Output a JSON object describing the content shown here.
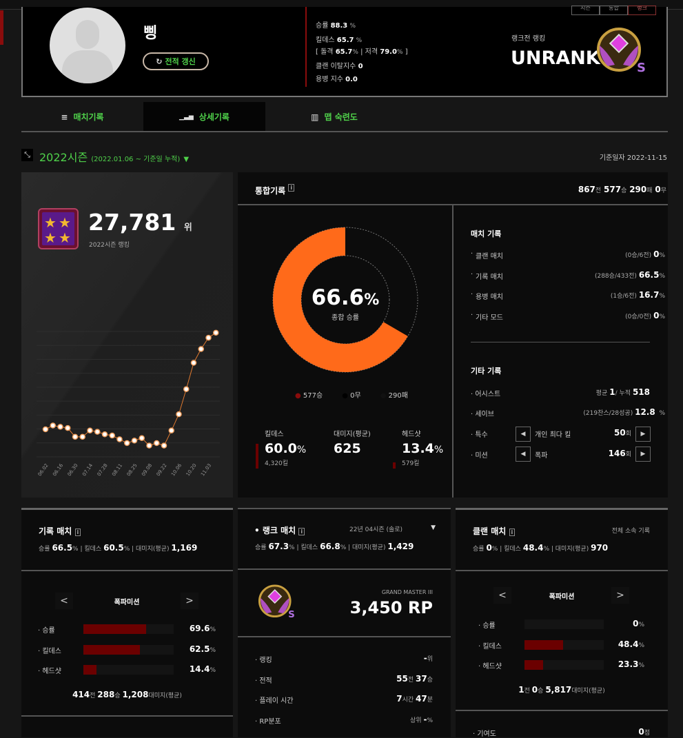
{
  "profile": {
    "name": "삥",
    "refresh_label": "전적 갱신",
    "stats": {
      "win_label": "승률",
      "win": "88.3",
      "kd_label": "킬데스",
      "kd": "65.7",
      "assault_label": "돌격",
      "assault": "65.7",
      "sniper_label": "저격",
      "sniper": "79.0",
      "clan_leave_label": "클랜 이탈지수",
      "clan_leave": "0",
      "merc_label": "용병 지수",
      "merc": "0.0"
    },
    "rank_label": "랭크전 랭킹",
    "rank_value": "UNRANK",
    "mode_buttons": [
      "시즌",
      "통합",
      "랭크"
    ]
  },
  "tabs": [
    {
      "label": "매치기록"
    },
    {
      "label": "상세기록"
    },
    {
      "label": "맵 숙련도"
    }
  ],
  "season": {
    "title": "2022시즌",
    "range": "(2022.01.06 ~ 기준일 누적)",
    "base_date": "기준일자 2022-11-15"
  },
  "ranking": {
    "value": "27,781",
    "unit": "위",
    "caption": "2022시즌 랭킹"
  },
  "chart_data": {
    "type": "line",
    "title": "",
    "xlabel": "",
    "ylabel": "",
    "grid": true,
    "ylim": [
      0,
      100
    ],
    "x_tick_labels": [
      "06.02",
      "06.16",
      "06.30",
      "07.14",
      "07.28",
      "08.11",
      "08.25",
      "09.08",
      "09.22",
      "10.06",
      "10.20",
      "11.03"
    ],
    "values": [
      22,
      25,
      24,
      23,
      16,
      16,
      21,
      20,
      18,
      17,
      14,
      11,
      13,
      15,
      9,
      11,
      9,
      21,
      34,
      54,
      75,
      86,
      95,
      99
    ]
  },
  "overall": {
    "title": "통합기록",
    "games": "867",
    "games_u": "전",
    "wins": "577",
    "wins_u": "승",
    "losses": "290",
    "losses_u": "패",
    "draws": "0",
    "draws_u": "무",
    "win_rate": "66.6",
    "win_rate_fraction": 0.666,
    "win_rate_label": "종합 승률",
    "legend": [
      "577승",
      "0무",
      "290패"
    ],
    "kd_label": "킬데스",
    "kd": "60.0",
    "kills": "4,320킬",
    "dmg_label": "대미지(평균)",
    "dmg": "625",
    "hs_label": "헤드샷",
    "hs": "13.4",
    "hs_kills": "579킬"
  },
  "match_records": {
    "title": "매치 기록",
    "items": [
      {
        "label": "클랜 매치",
        "detail": "(0승/6전)",
        "value": "0"
      },
      {
        "label": "기록 매치",
        "detail": "(288승/433전)",
        "value": "66.5"
      },
      {
        "label": "용병 매치",
        "detail": "(1승/6전)",
        "value": "16.7"
      },
      {
        "label": "기타 모드",
        "detail": "(0승/0전)",
        "value": "0"
      }
    ]
  },
  "other_records": {
    "title": "기타 기록",
    "assist_label": "어시스트",
    "assist_avg_l": "평균",
    "assist_avg": "1",
    "assist_total_l": "/ 누적",
    "assist_total": "518",
    "save_label": "세이브",
    "save_detail": "(219찬스/28성공)",
    "save": "12.8",
    "special_label": "특수",
    "special_item": "개인 최다 킬",
    "special_value": "50",
    "special_unit": "회",
    "mission_label": "미션",
    "mission_item": "폭파",
    "mission_value": "146",
    "mission_unit": "회"
  },
  "record_match": {
    "title": "기록 매치",
    "win": "66.5",
    "kd": "60.5",
    "dmg": "1,169",
    "mode": "폭파미션",
    "rows": [
      {
        "label": "승률",
        "value": "69.6",
        "pct": 69.6
      },
      {
        "label": "킬데스",
        "value": "62.5",
        "pct": 62.5
      },
      {
        "label": "헤드샷",
        "value": "14.4",
        "pct": 14.4
      }
    ],
    "games": "414",
    "wins": "288",
    "avg_dmg": "1,208"
  },
  "rank_match": {
    "title": "랭크 매치",
    "season": "22년 04시즌 (솔로)",
    "win": "67.3",
    "kd": "66.8",
    "dmg": "1,429",
    "tier": "GRAND MASTER III",
    "rp": "3,450 RP",
    "rows": [
      {
        "label": "랭킹",
        "value": "-",
        "unit": "위"
      },
      {
        "label": "전적",
        "value": "55",
        "unit": "전",
        "value2": "37",
        "unit2": "승"
      },
      {
        "label": "플레이 시간",
        "value": "7",
        "unit": "시간",
        "value2": "47",
        "unit2": "분"
      },
      {
        "label": "RP분포",
        "pre": "상위",
        "value": "-",
        "unit": "%"
      }
    ]
  },
  "clan_match": {
    "title": "클랜 매치",
    "scope": "전체 소속 기록",
    "win": "0",
    "kd": "48.4",
    "dmg": "970",
    "mode": "폭파미션",
    "rows": [
      {
        "label": "승률",
        "value": "0",
        "pct": 0
      },
      {
        "label": "킬데스",
        "value": "48.4",
        "pct": 48.4
      },
      {
        "label": "헤드샷",
        "value": "23.3",
        "pct": 23.3
      }
    ],
    "games": "1",
    "wins": "0",
    "avg_dmg": "5,817",
    "contrib_label": "기여도",
    "contrib": "0",
    "contrib_unit": "점"
  },
  "labels": {
    "win": "승률",
    "kd": "킬데스",
    "dmg": "대미지(평균)",
    "pct": "%",
    "games": "전",
    "wins": "승",
    "avg_dmg": "대미지(평균)"
  },
  "colors": {
    "accent_green": "#4fd14a",
    "orange": "#ff6a1a",
    "bar_red": "#6b0000"
  }
}
